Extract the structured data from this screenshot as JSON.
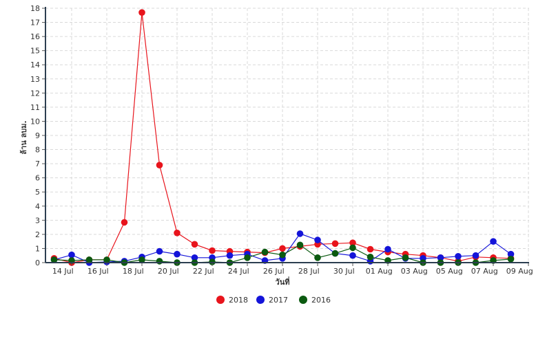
{
  "chart_data": {
    "type": "line",
    "xlabel": "วันที่",
    "ylabel": "ล้าน ลบม.",
    "ylim": [
      0,
      18
    ],
    "yticks": [
      0,
      1,
      2,
      3,
      4,
      5,
      6,
      7,
      8,
      9,
      10,
      11,
      12,
      13,
      14,
      15,
      16,
      17,
      18
    ],
    "x_start": "2019-07-13",
    "x_labels": [
      "14 Jul",
      "16 Jul",
      "18 Jul",
      "20 Jul",
      "22 Jul",
      "24 Jul",
      "26 Jul",
      "28 Jul",
      "30 Jul",
      "01 Aug",
      "03 Aug",
      "05 Aug",
      "07 Aug",
      "09 Aug"
    ],
    "grid": true,
    "legend_position": "bottom-center",
    "series": [
      {
        "name": "2018",
        "color": "#e8141c",
        "x": [
          "14 Jul",
          "15 Jul",
          "16 Jul",
          "17 Jul",
          "18 Jul",
          "19 Jul",
          "20 Jul",
          "21 Jul",
          "22 Jul",
          "23 Jul",
          "24 Jul",
          "25 Jul",
          "26 Jul",
          "27 Jul",
          "28 Jul",
          "29 Jul",
          "30 Jul",
          "31 Jul",
          "01 Aug",
          "02 Aug",
          "03 Aug",
          "04 Aug",
          "05 Aug",
          "06 Aug",
          "07 Aug",
          "08 Aug",
          "09 Aug"
        ],
        "values": [
          0.3,
          0.0,
          0.2,
          0.2,
          2.85,
          17.7,
          6.9,
          2.1,
          1.3,
          0.85,
          0.8,
          0.75,
          0.7,
          1.0,
          1.15,
          1.3,
          1.35,
          1.4,
          0.95,
          0.75,
          0.6,
          0.5,
          0.35,
          0.1,
          0.4,
          0.35,
          0.3
        ]
      },
      {
        "name": "2017",
        "color": "#1414d9",
        "x": [
          "14 Jul",
          "15 Jul",
          "16 Jul",
          "17 Jul",
          "18 Jul",
          "19 Jul",
          "20 Jul",
          "21 Jul",
          "22 Jul",
          "23 Jul",
          "24 Jul",
          "25 Jul",
          "26 Jul",
          "27 Jul",
          "28 Jul",
          "29 Jul",
          "30 Jul",
          "31 Jul",
          "01 Aug",
          "02 Aug",
          "03 Aug",
          "04 Aug",
          "05 Aug",
          "06 Aug",
          "07 Aug",
          "08 Aug",
          "09 Aug"
        ],
        "values": [
          0.2,
          0.55,
          0.0,
          0.05,
          0.1,
          0.4,
          0.8,
          0.6,
          0.35,
          0.35,
          0.5,
          0.6,
          0.15,
          0.3,
          2.05,
          1.6,
          0.65,
          0.5,
          0.1,
          0.95,
          0.3,
          0.3,
          0.35,
          0.45,
          0.5,
          1.5,
          0.6
        ]
      },
      {
        "name": "2016",
        "color": "#0b5a10",
        "x": [
          "14 Jul",
          "15 Jul",
          "16 Jul",
          "17 Jul",
          "18 Jul",
          "19 Jul",
          "20 Jul",
          "21 Jul",
          "22 Jul",
          "23 Jul",
          "24 Jul",
          "25 Jul",
          "26 Jul",
          "27 Jul",
          "28 Jul",
          "29 Jul",
          "30 Jul",
          "31 Jul",
          "01 Aug",
          "02 Aug",
          "03 Aug",
          "04 Aug",
          "05 Aug",
          "06 Aug",
          "07 Aug",
          "08 Aug",
          "09 Aug"
        ],
        "values": [
          0.2,
          0.15,
          0.2,
          0.2,
          0.0,
          0.2,
          0.1,
          0.0,
          0.0,
          0.05,
          0.0,
          0.35,
          0.75,
          0.55,
          1.25,
          0.35,
          0.65,
          1.05,
          0.4,
          0.15,
          0.35,
          0.0,
          0.0,
          0.0,
          0.0,
          0.15,
          0.25
        ]
      }
    ]
  }
}
